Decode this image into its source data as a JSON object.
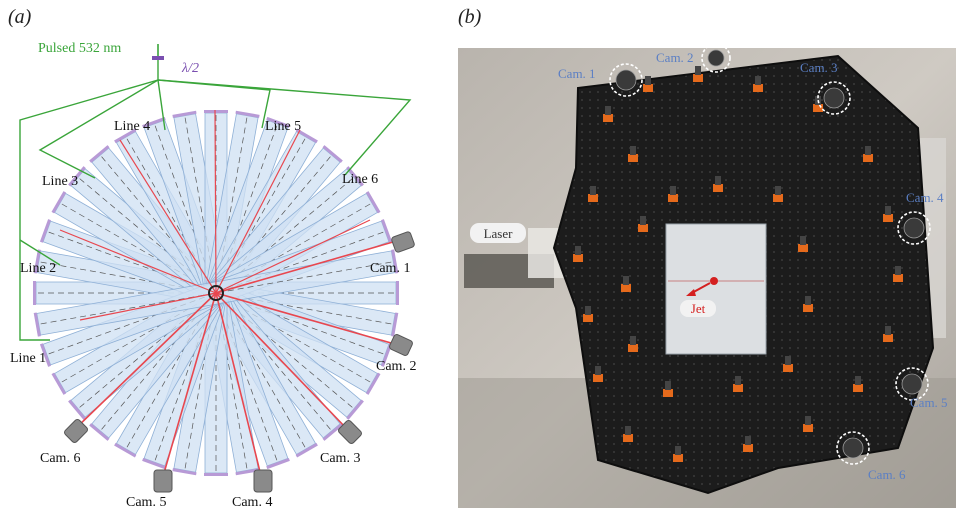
{
  "panel_a": {
    "label": "(a)",
    "laser_label": "Pulsed 532 nm",
    "waveplate_label": "λ/2",
    "lines": [
      "Line 1",
      "Line 2",
      "Line 3",
      "Line 4",
      "Line 5",
      "Line 6"
    ],
    "cameras": [
      "Cam. 1",
      "Cam. 2",
      "Cam. 3",
      "Cam. 4",
      "Cam. 5",
      "Cam. 6"
    ]
  },
  "panel_b": {
    "label": "(b)",
    "laser_tag": "Laser",
    "jet_tag": "Jet",
    "cameras": [
      "Cam. 1",
      "Cam. 2",
      "Cam. 3",
      "Cam. 4",
      "Cam. 5",
      "Cam. 6"
    ]
  },
  "colors": {
    "green_beam": "#3aa53a",
    "red_beam": "#e8474f",
    "blue_arm": "#cfe0f3",
    "blue_arm_edge": "#8fb0d6",
    "camera_label": "#5b7fc4",
    "jet_red": "#d42020",
    "frame": "#1c1c1c"
  }
}
